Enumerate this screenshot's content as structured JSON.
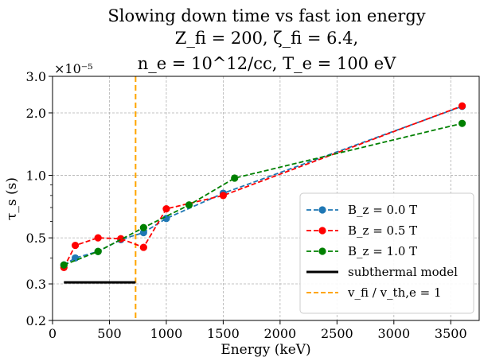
{
  "chart_data": {
    "type": "line",
    "title_lines": [
      "Slowing down time vs fast ion energy",
      "Z_fi = 200, ζ_fi = 6.4,",
      "n_e = 10^12/cc, T_e = 100 eV"
    ],
    "xlabel": "Energy (keV)",
    "ylabel": "τ_s (s)",
    "y_multiplier": "×10⁻⁵",
    "xscale": "linear",
    "yscale": "log",
    "xlim": [
      0,
      3750
    ],
    "ylim": [
      0.2,
      3.0
    ],
    "grid": true,
    "legend_position": "lower-right",
    "x_ticks": [
      0,
      500,
      1000,
      1500,
      2000,
      2500,
      3000,
      3500
    ],
    "x_tick_labels": [
      "0",
      "500",
      "1000",
      "1500",
      "2000",
      "2500",
      "3000",
      "3500"
    ],
    "y_ticks": [
      0.2,
      0.3,
      0.5,
      1.0,
      2.0,
      3.0
    ],
    "y_tick_labels": [
      "0.2",
      "0.3",
      "0.5",
      "1.0",
      "2.0",
      "3.0"
    ],
    "series": [
      {
        "name": "B_z = 0.0 T",
        "color": "#1f77b4",
        "style": "dashed-marker",
        "x": [
          100,
          200,
          400,
          600,
          800,
          1000,
          1500,
          3600
        ],
        "y": [
          0.37,
          0.4,
          0.43,
          0.49,
          0.53,
          0.62,
          0.82,
          2.15
        ]
      },
      {
        "name": "B_z = 0.5 T",
        "color": "#ff0000",
        "style": "dashed-marker",
        "x": [
          100,
          200,
          400,
          600,
          800,
          1000,
          1500,
          3600
        ],
        "y": [
          0.36,
          0.46,
          0.5,
          0.495,
          0.45,
          0.69,
          0.8,
          2.16
        ]
      },
      {
        "name": "B_z = 1.0 T",
        "color": "#008000",
        "style": "dashed-marker",
        "x": [
          100,
          400,
          800,
          1200,
          1600,
          3600
        ],
        "y": [
          0.37,
          0.43,
          0.56,
          0.72,
          0.97,
          1.78
        ]
      }
    ],
    "subthermal_model": {
      "name": "subthermal model",
      "color": "#000000",
      "x": [
        100,
        730
      ],
      "y": [
        0.305,
        0.305
      ]
    },
    "threshold_line": {
      "name": "v_fi / v_th,e = 1",
      "color": "#ffa500",
      "x": 730
    }
  }
}
